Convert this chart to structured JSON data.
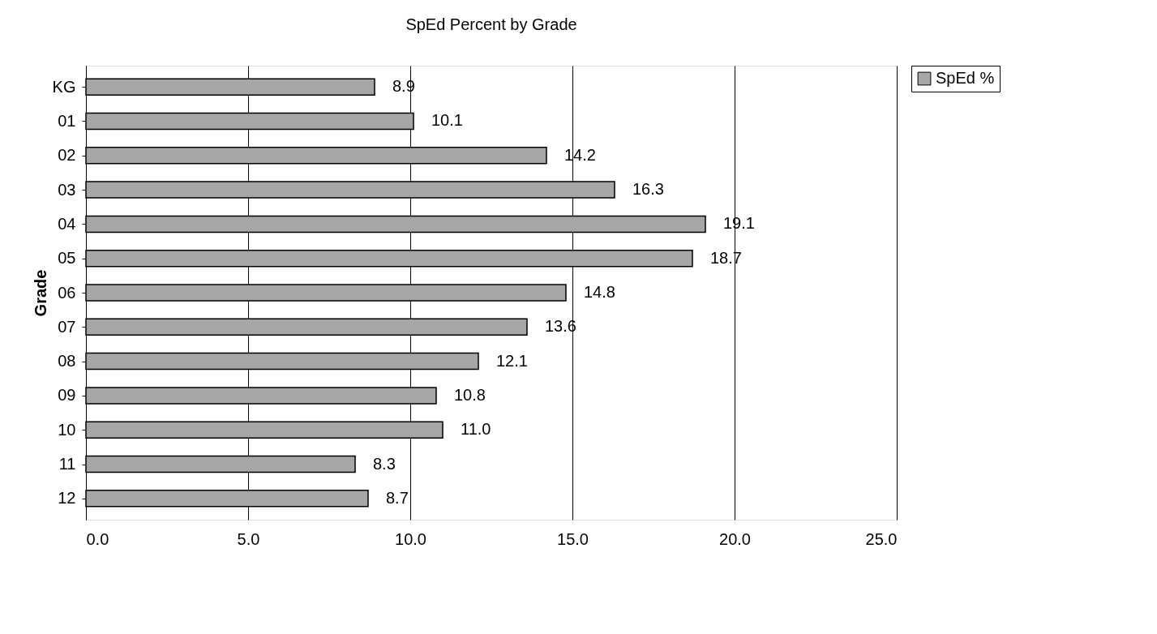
{
  "chart_data": {
    "type": "bar",
    "orientation": "horizontal",
    "title": "SpEd Percent by Grade",
    "ylabel": "Grade",
    "categories": [
      "KG",
      "01",
      "02",
      "03",
      "04",
      "05",
      "06",
      "07",
      "08",
      "09",
      "10",
      "11",
      "12"
    ],
    "series": [
      {
        "name": "SpEd %",
        "color": "#a6a6a6",
        "values": [
          8.9,
          10.1,
          14.2,
          16.3,
          19.1,
          18.7,
          14.8,
          13.6,
          12.1,
          10.8,
          11.0,
          8.3,
          8.7
        ],
        "value_labels": [
          "8.9",
          "10.1",
          "14.2",
          "16.3",
          "19.1",
          "18.7",
          "14.8",
          "13.6",
          "12.1",
          "10.8",
          "11.0",
          "8.3",
          "8.7"
        ]
      }
    ],
    "xlim": [
      0,
      25
    ],
    "xticks": [
      {
        "value": 0,
        "label": "0.0"
      },
      {
        "value": 5,
        "label": "5.0"
      },
      {
        "value": 10,
        "label": "10.0"
      },
      {
        "value": 15,
        "label": "15.0"
      },
      {
        "value": 20,
        "label": "20.0"
      },
      {
        "value": 25,
        "label": "25.0"
      }
    ],
    "grid": "x",
    "legend": "right"
  }
}
